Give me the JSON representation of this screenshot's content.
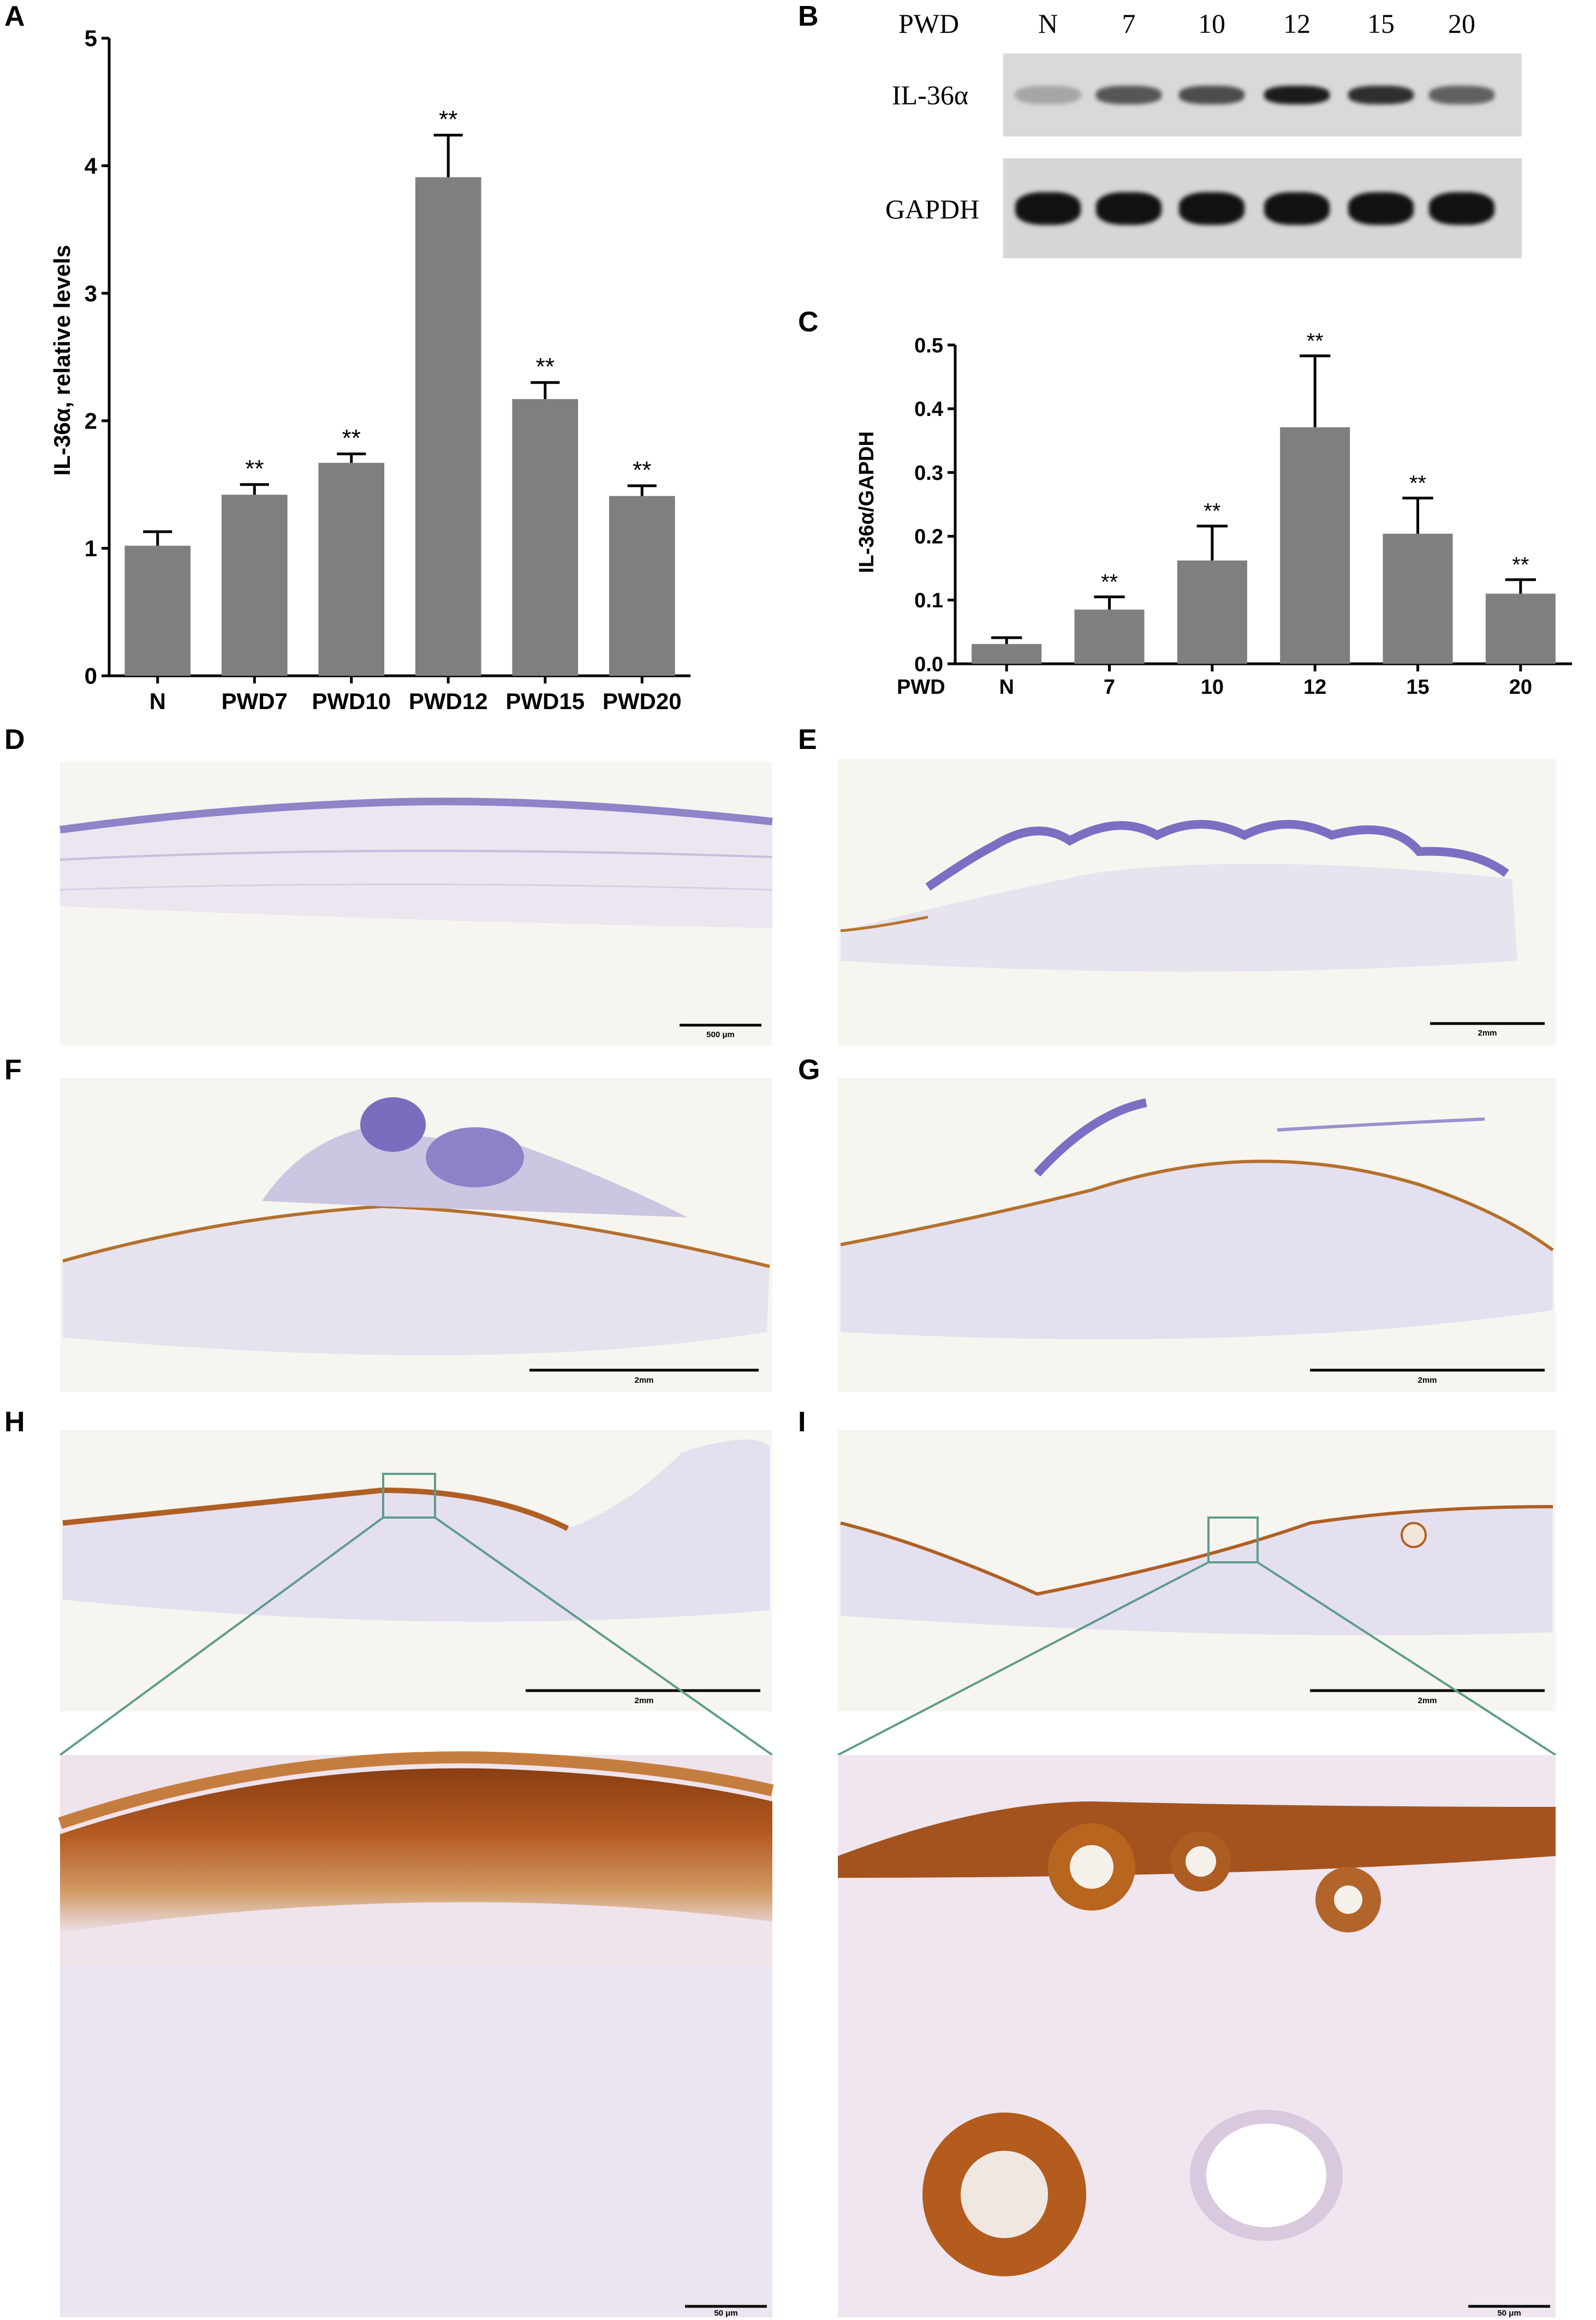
{
  "panel_letters": [
    "A",
    "B",
    "C",
    "D",
    "E",
    "F",
    "G",
    "H",
    "I"
  ],
  "chart_data": [
    {
      "id": "A",
      "type": "bar",
      "ylabel": "IL-36α, relative levels",
      "xlabel": "",
      "categories": [
        "N",
        "PWD7",
        "PWD10",
        "PWD12",
        "PWD15",
        "PWD20"
      ],
      "values": [
        1.02,
        1.42,
        1.67,
        3.91,
        2.17,
        1.41
      ],
      "errors": [
        0.11,
        0.08,
        0.07,
        0.33,
        0.13,
        0.08
      ],
      "annotations": [
        "",
        "**",
        "**",
        "**",
        "**",
        "**"
      ],
      "ylim": [
        0,
        5
      ],
      "yticks": [
        "0",
        "1",
        "2",
        "3",
        "4",
        "5"
      ],
      "bar_color": "#7f7f7f",
      "grid": false
    },
    {
      "id": "C",
      "type": "bar",
      "ylabel": "IL-36α/GAPDH",
      "xlabel_prefix": "PWD",
      "categories": [
        "N",
        "7",
        "10",
        "12",
        "15",
        "20"
      ],
      "values": [
        0.031,
        0.085,
        0.162,
        0.371,
        0.204,
        0.11
      ],
      "errors": [
        0.01,
        0.02,
        0.054,
        0.112,
        0.056,
        0.022
      ],
      "annotations": [
        "",
        "**",
        "**",
        "**",
        "**",
        "**"
      ],
      "ylim": [
        0,
        0.5
      ],
      "yticks": [
        "0.0",
        "0.1",
        "0.2",
        "0.3",
        "0.4",
        "0.5"
      ],
      "bar_color": "#7f7f7f",
      "grid": false
    }
  ],
  "blot": {
    "header_label": "PWD",
    "lanes": [
      "N",
      "7",
      "10",
      "12",
      "15",
      "20"
    ],
    "rows": [
      {
        "label": "IL-36α",
        "intensity": [
          0.25,
          0.65,
          0.7,
          0.95,
          0.85,
          0.6
        ]
      },
      {
        "label": "GAPDH",
        "intensity": [
          1,
          1,
          1,
          1,
          1,
          1
        ]
      }
    ]
  },
  "scale_bars": {
    "D": "500 μm",
    "E": "2mm",
    "F": "2mm",
    "G": "2mm",
    "H": "2mm",
    "I": "2mm",
    "H_zoom": "50 μm",
    "I_zoom": "50 μm"
  },
  "colors": {
    "tissue_bg": "#f7f5ef",
    "hematoxylin": "#8c86c9",
    "dab_brown": "#b5652a",
    "inset_box": "#5e9c8c"
  }
}
